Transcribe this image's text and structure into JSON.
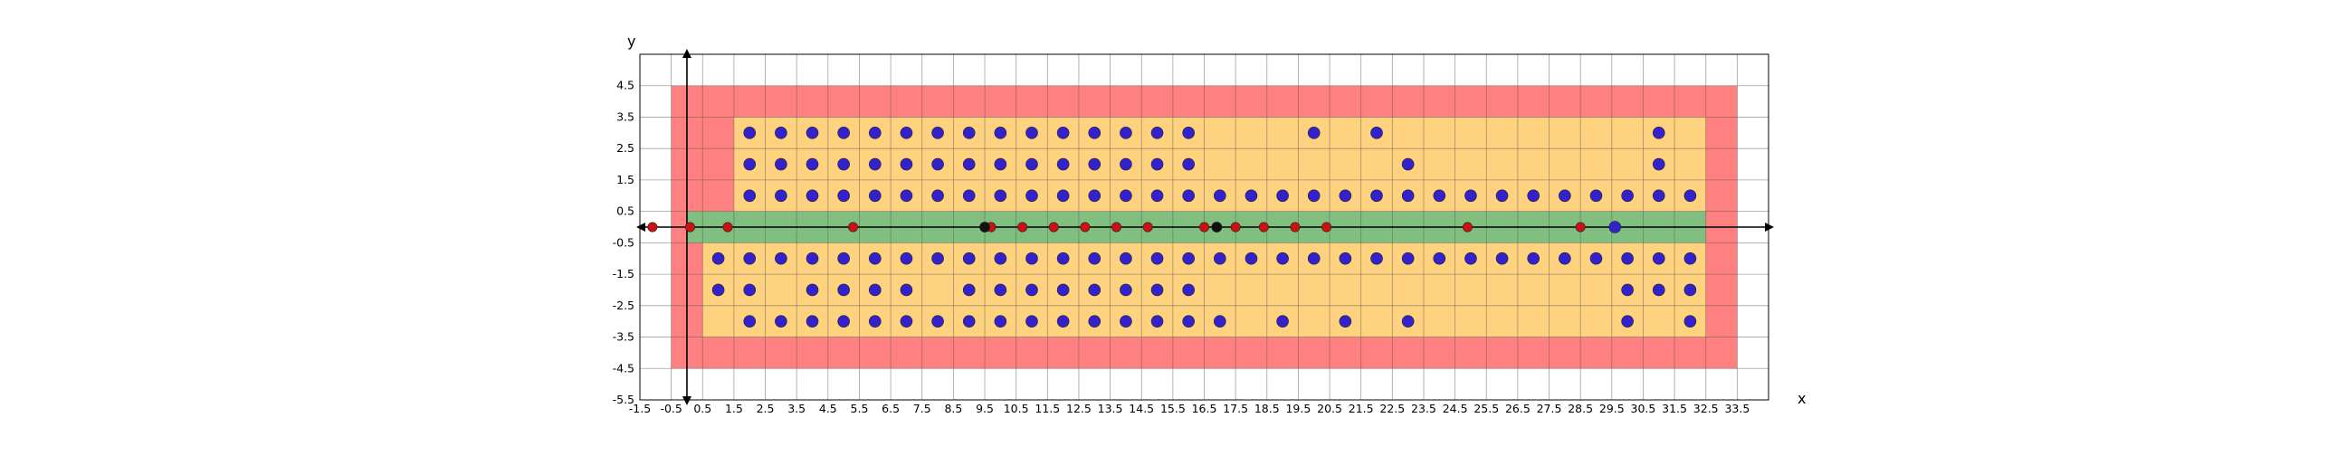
{
  "chart_data": {
    "type": "scatter",
    "title": "",
    "xlabel": "x",
    "ylabel": "y",
    "xlim": [
      -1.5,
      34.5
    ],
    "ylim": [
      -5.5,
      5.5
    ],
    "grid": true,
    "x_ticks": [
      "-1.5",
      "-0.5",
      "0.5",
      "1.5",
      "2.5",
      "3.5",
      "4.5",
      "5.5",
      "6.5",
      "7.5",
      "8.5",
      "9.5",
      "10.5",
      "11.5",
      "12.5",
      "13.5",
      "14.5",
      "15.5",
      "16.5",
      "17.5",
      "18.5",
      "19.5",
      "20.5",
      "21.5",
      "22.5",
      "23.5",
      "24.5",
      "25.5",
      "26.5",
      "27.5",
      "28.5",
      "29.5",
      "30.5",
      "31.5",
      "32.5",
      "33.5"
    ],
    "y_ticks": [
      "4.5",
      "3.5",
      "2.5",
      "1.5",
      "0.5",
      "-0.5",
      "-1.5",
      "-2.5",
      "-3.5",
      "-4.5",
      "-5.5"
    ],
    "colors": {
      "red_region": "#ff8080",
      "orange_region": "#ffd280",
      "green_region": "#80bf80",
      "blue_point": "#3322cc",
      "red_point": "#cc1111",
      "black_point": "#111111"
    },
    "regions": [
      {
        "name": "red",
        "x": [
          -0.5,
          33.5
        ],
        "y": [
          -4.5,
          4.5
        ]
      },
      {
        "name": "orange-top",
        "x": [
          1.5,
          32.5
        ],
        "y": [
          0.5,
          3.5
        ]
      },
      {
        "name": "orange-bottom",
        "x": [
          0.5,
          32.5
        ],
        "y": [
          -3.5,
          -0.5
        ]
      },
      {
        "name": "green",
        "x": [
          0,
          32.5
        ],
        "y": [
          -0.5,
          0.5
        ]
      }
    ],
    "series": [
      {
        "kind": "blue",
        "points": [
          [
            2,
            3
          ],
          [
            3,
            3
          ],
          [
            4,
            3
          ],
          [
            5,
            3
          ],
          [
            6,
            3
          ],
          [
            7,
            3
          ],
          [
            8,
            3
          ],
          [
            9,
            3
          ],
          [
            10,
            3
          ],
          [
            11,
            3
          ],
          [
            12,
            3
          ],
          [
            13,
            3
          ],
          [
            14,
            3
          ],
          [
            15,
            3
          ],
          [
            16,
            3
          ],
          [
            20,
            3
          ],
          [
            22,
            3
          ],
          [
            31,
            3
          ],
          [
            2,
            2
          ],
          [
            3,
            2
          ],
          [
            4,
            2
          ],
          [
            5,
            2
          ],
          [
            6,
            2
          ],
          [
            7,
            2
          ],
          [
            8,
            2
          ],
          [
            9,
            2
          ],
          [
            10,
            2
          ],
          [
            11,
            2
          ],
          [
            12,
            2
          ],
          [
            13,
            2
          ],
          [
            14,
            2
          ],
          [
            15,
            2
          ],
          [
            16,
            2
          ],
          [
            23,
            2
          ],
          [
            31,
            2
          ],
          [
            2,
            1
          ],
          [
            3,
            1
          ],
          [
            4,
            1
          ],
          [
            5,
            1
          ],
          [
            6,
            1
          ],
          [
            7,
            1
          ],
          [
            8,
            1
          ],
          [
            9,
            1
          ],
          [
            10,
            1
          ],
          [
            11,
            1
          ],
          [
            12,
            1
          ],
          [
            13,
            1
          ],
          [
            14,
            1
          ],
          [
            15,
            1
          ],
          [
            16,
            1
          ],
          [
            17,
            1
          ],
          [
            18,
            1
          ],
          [
            19,
            1
          ],
          [
            20,
            1
          ],
          [
            21,
            1
          ],
          [
            22,
            1
          ],
          [
            23,
            1
          ],
          [
            24,
            1
          ],
          [
            25,
            1
          ],
          [
            26,
            1
          ],
          [
            27,
            1
          ],
          [
            28,
            1
          ],
          [
            29,
            1
          ],
          [
            30,
            1
          ],
          [
            31,
            1
          ],
          [
            32,
            1
          ],
          [
            29.6,
            0
          ],
          [
            1,
            -1
          ],
          [
            2,
            -1
          ],
          [
            3,
            -1
          ],
          [
            4,
            -1
          ],
          [
            5,
            -1
          ],
          [
            6,
            -1
          ],
          [
            7,
            -1
          ],
          [
            8,
            -1
          ],
          [
            9,
            -1
          ],
          [
            10,
            -1
          ],
          [
            11,
            -1
          ],
          [
            12,
            -1
          ],
          [
            13,
            -1
          ],
          [
            14,
            -1
          ],
          [
            15,
            -1
          ],
          [
            16,
            -1
          ],
          [
            17,
            -1
          ],
          [
            18,
            -1
          ],
          [
            19,
            -1
          ],
          [
            20,
            -1
          ],
          [
            21,
            -1
          ],
          [
            22,
            -1
          ],
          [
            23,
            -1
          ],
          [
            24,
            -1
          ],
          [
            25,
            -1
          ],
          [
            26,
            -1
          ],
          [
            27,
            -1
          ],
          [
            28,
            -1
          ],
          [
            29,
            -1
          ],
          [
            30,
            -1
          ],
          [
            31,
            -1
          ],
          [
            32,
            -1
          ],
          [
            1,
            -2
          ],
          [
            2,
            -2
          ],
          [
            4,
            -2
          ],
          [
            5,
            -2
          ],
          [
            6,
            -2
          ],
          [
            7,
            -2
          ],
          [
            9,
            -2
          ],
          [
            10,
            -2
          ],
          [
            11,
            -2
          ],
          [
            12,
            -2
          ],
          [
            13,
            -2
          ],
          [
            14,
            -2
          ],
          [
            15,
            -2
          ],
          [
            16,
            -2
          ],
          [
            30,
            -2
          ],
          [
            31,
            -2
          ],
          [
            32,
            -2
          ],
          [
            2,
            -3
          ],
          [
            3,
            -3
          ],
          [
            4,
            -3
          ],
          [
            5,
            -3
          ],
          [
            6,
            -3
          ],
          [
            7,
            -3
          ],
          [
            8,
            -3
          ],
          [
            9,
            -3
          ],
          [
            10,
            -3
          ],
          [
            11,
            -3
          ],
          [
            12,
            -3
          ],
          [
            13,
            -3
          ],
          [
            14,
            -3
          ],
          [
            15,
            -3
          ],
          [
            16,
            -3
          ],
          [
            17,
            -3
          ],
          [
            19,
            -3
          ],
          [
            21,
            -3
          ],
          [
            23,
            -3
          ],
          [
            30,
            -3
          ],
          [
            32,
            -3
          ]
        ]
      },
      {
        "kind": "red",
        "points": [
          [
            -1.1,
            0
          ],
          [
            0.1,
            0
          ],
          [
            1.3,
            0
          ],
          [
            5.3,
            0
          ],
          [
            9.7,
            0
          ],
          [
            10.7,
            0
          ],
          [
            11.7,
            0
          ],
          [
            12.7,
            0
          ],
          [
            13.7,
            0
          ],
          [
            14.7,
            0
          ],
          [
            16.5,
            0
          ],
          [
            17.5,
            0
          ],
          [
            18.4,
            0
          ],
          [
            19.4,
            0
          ],
          [
            20.4,
            0
          ],
          [
            24.9,
            0
          ],
          [
            28.5,
            0
          ]
        ]
      },
      {
        "kind": "black",
        "points": [
          [
            9.5,
            0
          ],
          [
            16.9,
            0
          ]
        ]
      }
    ]
  }
}
